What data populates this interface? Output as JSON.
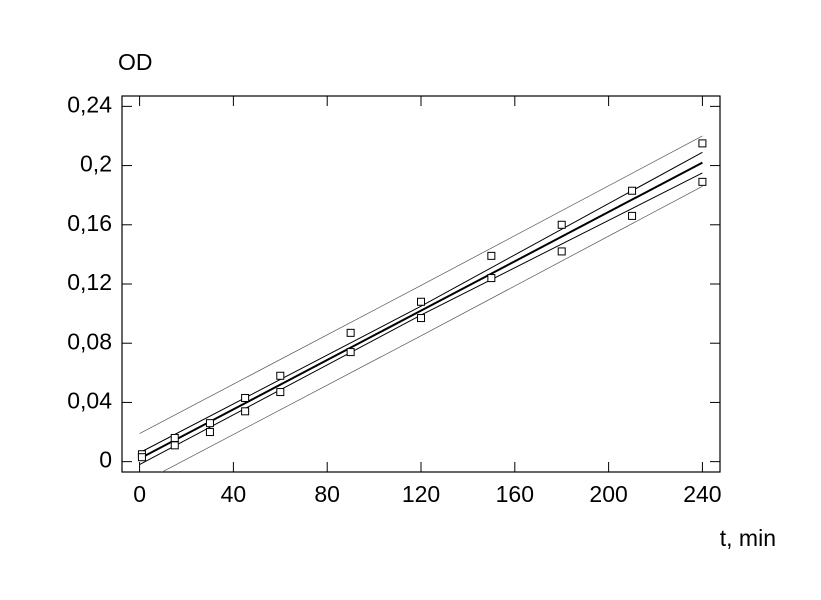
{
  "chart_data": {
    "type": "scatter",
    "y_label": "OD",
    "x_label": "t, min",
    "xlim": [
      -7.5,
      247.5
    ],
    "ylim": [
      -0.007,
      0.247
    ],
    "xticks": [
      0,
      40,
      80,
      120,
      160,
      200,
      240
    ],
    "yticks": [
      {
        "value": 0,
        "label": "0"
      },
      {
        "value": 0.04,
        "label": "0,04"
      },
      {
        "value": 0.08,
        "label": "0,08"
      },
      {
        "value": 0.12,
        "label": "0,12"
      },
      {
        "value": 0.16,
        "label": "0,16"
      },
      {
        "value": 0.2,
        "label": "0,2"
      },
      {
        "value": 0.24,
        "label": "0,24"
      }
    ],
    "points": {
      "color": "#000000",
      "x": [
        1,
        1,
        15,
        15,
        30,
        30,
        45,
        45,
        60,
        60,
        90,
        90,
        120,
        120,
        150,
        150,
        180,
        180,
        210,
        210,
        240,
        240
      ],
      "y": [
        0.005,
        0.003,
        0.016,
        0.011,
        0.026,
        0.02,
        0.043,
        0.034,
        0.058,
        0.047,
        0.087,
        0.074,
        0.108,
        0.097,
        0.139,
        0.124,
        0.16,
        0.142,
        0.183,
        0.166,
        0.215,
        0.189
      ]
    },
    "lines": [
      {
        "x": [
          0,
          120,
          240
        ],
        "y": [
          0.002,
          0.102,
          0.202
        ],
        "color": "#000000",
        "width": 2
      },
      {
        "x": [
          0,
          120,
          240
        ],
        "y": [
          0.006,
          0.105,
          0.209
        ],
        "color": "#000000",
        "width": 1
      },
      {
        "x": [
          0,
          120,
          240
        ],
        "y": [
          -0.002,
          0.099,
          0.195
        ],
        "color": "#000000",
        "width": 1
      },
      {
        "x": [
          0,
          120,
          240
        ],
        "y": [
          0.019,
          0.119,
          0.22
        ],
        "color": "#555555",
        "width": 0.7
      },
      {
        "x": [
          0,
          120,
          240
        ],
        "y": [
          -0.015,
          0.085,
          0.186
        ],
        "color": "#555555",
        "width": 0.7
      }
    ]
  }
}
